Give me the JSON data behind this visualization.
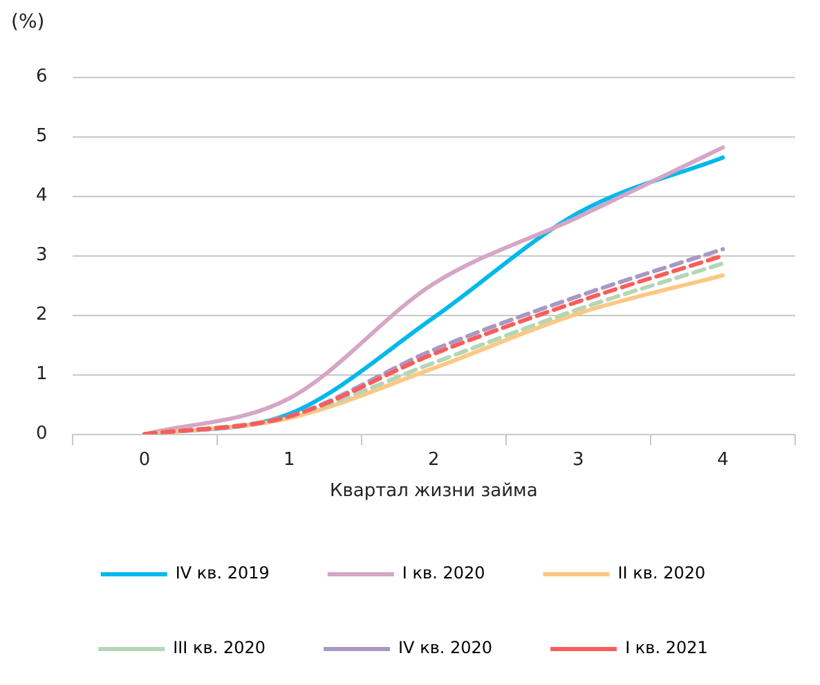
{
  "chart_data": {
    "type": "line",
    "ylabel": "(%)",
    "xlabel": "Квартал жизни займа",
    "categories": [
      "0",
      "1",
      "2",
      "3",
      "4"
    ],
    "series": [
      {
        "name": "IV кв. 2019",
        "color": "#00b8ec",
        "values": [
          0,
          0.34,
          1.96,
          3.72,
          4.65
        ]
      },
      {
        "name": "I кв. 2020",
        "color": "#d5a6c6",
        "values": [
          0,
          0.6,
          2.53,
          3.65,
          4.82
        ]
      },
      {
        "name": "II кв. 2020",
        "color": "#fdc884",
        "values": [
          0,
          0.27,
          1.11,
          2.03,
          2.67
        ]
      },
      {
        "name": "III кв. 2020",
        "color": "#b5d6b4",
        "values": [
          0,
          0.3,
          1.2,
          2.1,
          2.87
        ],
        "line_style": "dashed"
      },
      {
        "name": "IV кв. 2020",
        "color": "#a899c2",
        "values": [
          0,
          0.3,
          1.42,
          2.32,
          3.11
        ],
        "line_style": "dashed"
      },
      {
        "name": "I кв. 2021",
        "color": "#fc5c5c",
        "values": [
          0,
          0.3,
          1.35,
          2.23,
          3.0
        ],
        "line_style": "dashed"
      }
    ],
    "ylim": [
      0,
      6
    ],
    "yticks": [
      0,
      1,
      2,
      3,
      4,
      5,
      6
    ],
    "grid": "y",
    "legend": "bottom",
    "marker": "none",
    "line_style": "solid"
  }
}
